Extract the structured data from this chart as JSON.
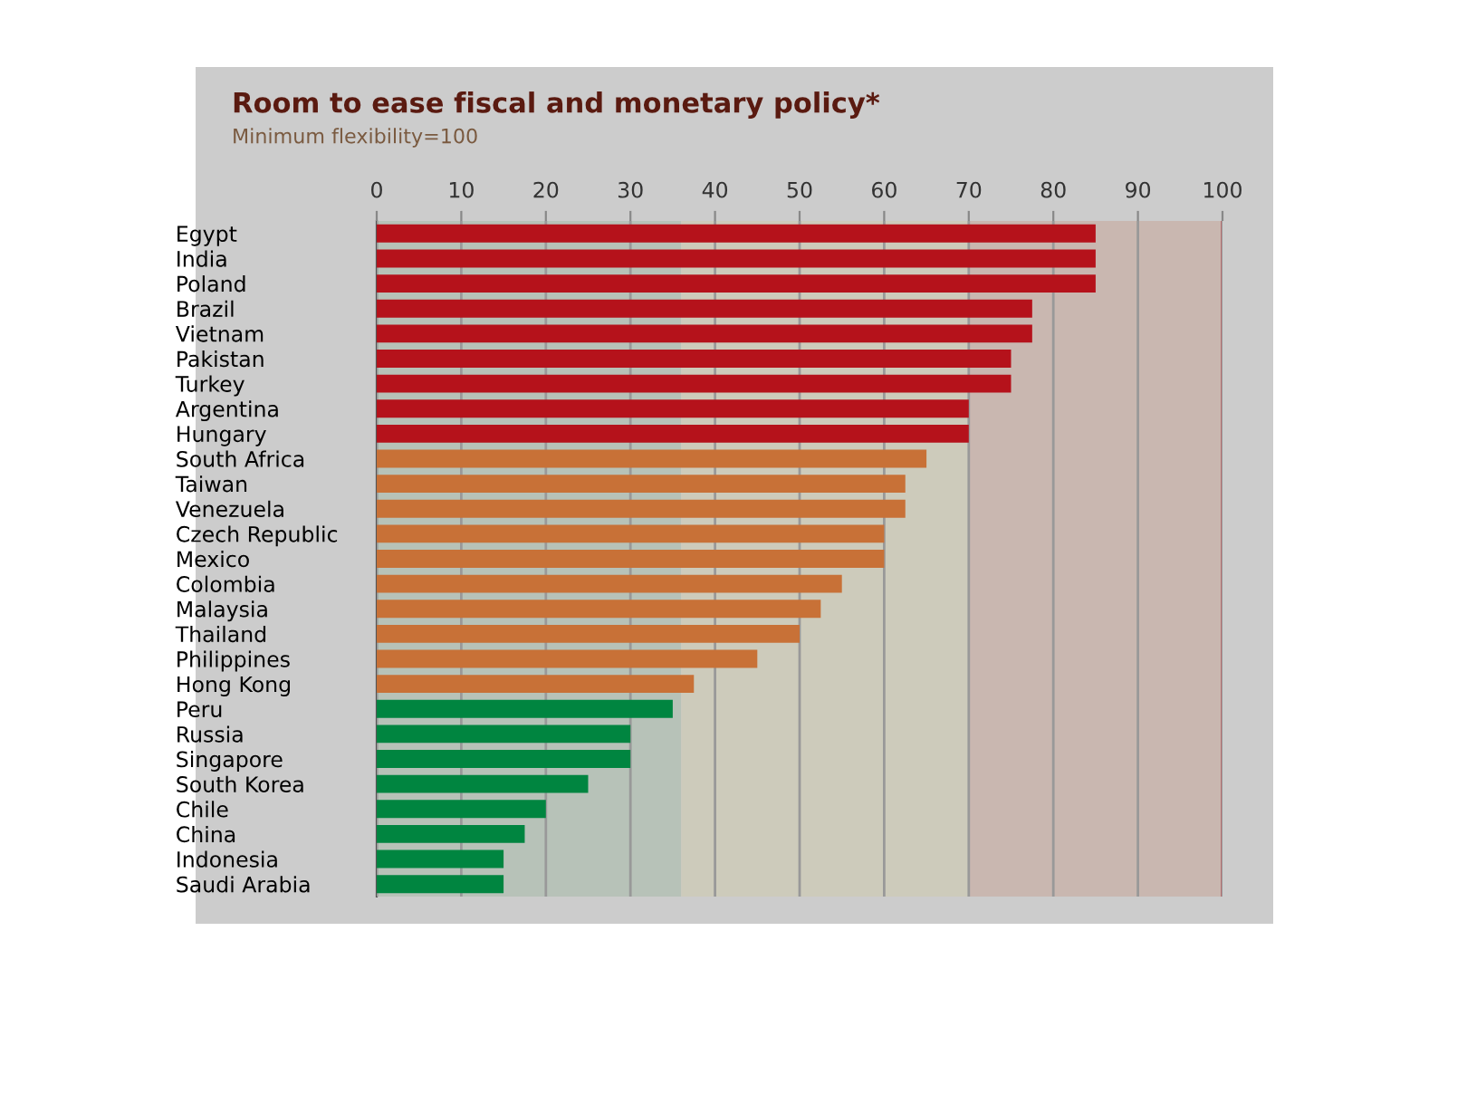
{
  "chart_data": {
    "type": "bar",
    "orientation": "horizontal",
    "title": "Room to ease fiscal and monetary policy*",
    "subtitle": "Minimum flexibility=100",
    "categories": [
      "Egypt",
      "India",
      "Poland",
      "Brazil",
      "Vietnam",
      "Pakistan",
      "Turkey",
      "Argentina",
      "Hungary",
      "South Africa",
      "Taiwan",
      "Venezuela",
      "Czech Republic",
      "Mexico",
      "Colombia",
      "Malaysia",
      "Thailand",
      "Philippines",
      "Hong Kong",
      "Peru",
      "Russia",
      "Singapore",
      "South Korea",
      "Chile",
      "China",
      "Indonesia",
      "Saudi Arabia"
    ],
    "values": [
      85,
      85,
      85,
      77.5,
      77.5,
      75,
      75,
      70,
      70,
      65,
      62.5,
      62.5,
      60,
      60,
      55,
      52.5,
      50,
      45,
      37.5,
      35,
      30,
      30,
      25,
      20,
      17.5,
      15,
      15
    ],
    "colors": [
      "#b5121b",
      "#b5121b",
      "#b5121b",
      "#b5121b",
      "#b5121b",
      "#b5121b",
      "#b5121b",
      "#b5121b",
      "#b5121b",
      "#c87137",
      "#c87137",
      "#c87137",
      "#c87137",
      "#c87137",
      "#c87137",
      "#c87137",
      "#c87137",
      "#c87137",
      "#c87137",
      "#008540",
      "#008540",
      "#008540",
      "#008540",
      "#008540",
      "#008540",
      "#008540",
      "#008540"
    ],
    "xlim": [
      0,
      100
    ],
    "xticks": [
      0,
      10,
      20,
      30,
      40,
      50,
      60,
      70,
      80,
      90,
      100
    ],
    "grid": "x",
    "bands": [
      {
        "axis": "x",
        "from": 0,
        "to": 36,
        "color": "#b7c2b8"
      },
      {
        "axis": "x",
        "from": 36,
        "to": 70,
        "color": "#cdcbbb"
      },
      {
        "axis": "x",
        "from": 70,
        "to": 100,
        "color": "#c9b7b0"
      }
    ],
    "ref_lines": [
      {
        "axis": "x",
        "value": 100,
        "color": "#d0262d"
      }
    ]
  }
}
